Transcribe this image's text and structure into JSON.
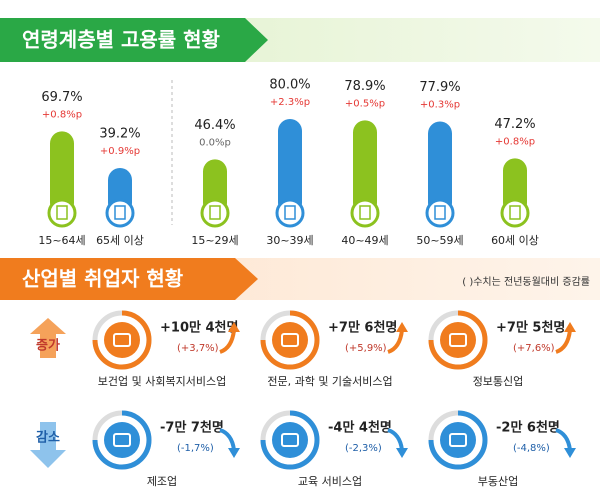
{
  "age": {
    "title": "연령계층별 고용률 현황",
    "items": [
      {
        "label": "15~64세",
        "value": 69.7,
        "value_label": "69.7%",
        "change": "+0.8%p",
        "color": "#8cc21f"
      },
      {
        "label": "65세 이상",
        "value": 39.2,
        "value_label": "39.2%",
        "change": "+0.9%p",
        "color": "#2f8fd8"
      },
      {
        "label": "15~29세",
        "value": 46.4,
        "value_label": "46.4%",
        "change": "0.0%p",
        "color": "#8cc21f"
      },
      {
        "label": "30~39세",
        "value": 80.0,
        "value_label": "80.0%",
        "change": "+2.3%p",
        "color": "#2f8fd8"
      },
      {
        "label": "40~49세",
        "value": 78.9,
        "value_label": "78.9%",
        "change": "+0.5%p",
        "color": "#8cc21f"
      },
      {
        "label": "50~59세",
        "value": 77.9,
        "value_label": "77.9%",
        "change": "+0.3%p",
        "color": "#2f8fd8"
      },
      {
        "label": "60세 이상",
        "value": 47.2,
        "value_label": "47.2%",
        "change": "+0.8%p",
        "color": "#8cc21f"
      }
    ]
  },
  "industry": {
    "title": "산업별 취업자 현황",
    "note": "( )수치는 전년동월대비 증감률",
    "increase": {
      "label": "증가",
      "items": [
        {
          "name": "보건업 및 사회복지서비스업",
          "amount": "+10만 4천명",
          "rate": "(+3,7%)"
        },
        {
          "name": "전문, 과학 및 기술서비스업",
          "amount": "+7만 6천명",
          "rate": "(+5,9%)"
        },
        {
          "name": "정보통신업",
          "amount": "+7만 5천명",
          "rate": "(+7,6%)"
        }
      ]
    },
    "decrease": {
      "label": "감소",
      "items": [
        {
          "name": "제조업",
          "amount": "-7만 7천명",
          "rate": "(-1,7%)"
        },
        {
          "name": "교육 서비스업",
          "amount": "-4만 4천명",
          "rate": "(-2,3%)"
        },
        {
          "name": "부동산업",
          "amount": "-2만 6천명",
          "rate": "(-4,8%)"
        }
      ]
    }
  }
}
